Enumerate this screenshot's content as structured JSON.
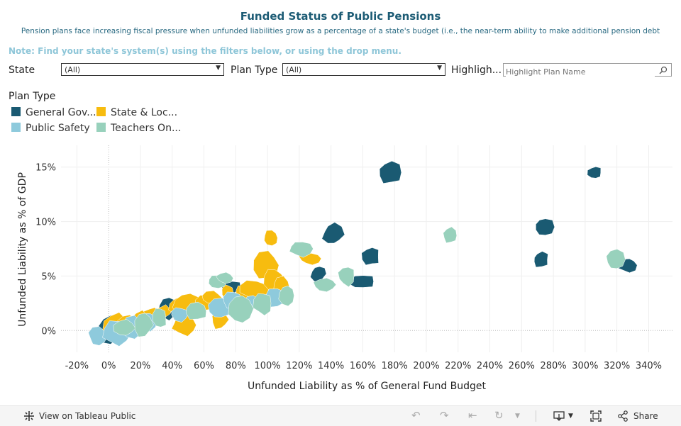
{
  "header": {
    "title": "Funded Status of Public Pensions",
    "subtitle": "Pension plans face increasing fiscal pressure when unfunded liabilities grow as a percentage of a state's budget (i.e., the near-term ability to make additional pension debt"
  },
  "note": "Note: Find your state's system(s) using the filters below, or using the drop menu.",
  "filters": {
    "state_label": "State",
    "state_value": "(All)",
    "plan_type_label": "Plan Type",
    "plan_type_value": "(All)",
    "highlight_label": "Highligh...",
    "highlight_placeholder": "Highlight Plan Name"
  },
  "legend": {
    "title": "Plan Type",
    "items": [
      {
        "label": "General Gov...",
        "color": "#1a5a72"
      },
      {
        "label": "State & Loc...",
        "color": "#f7bc0f"
      },
      {
        "label": "Public Safety",
        "color": "#8ecadc"
      },
      {
        "label": "Teachers On...",
        "color": "#98d1bc"
      }
    ]
  },
  "chart_data": {
    "type": "scatter",
    "marker": "state-shape",
    "xlabel": "Unfunded Liability as % of General Fund Budget",
    "ylabel": "Unfunded Liability as % of GDP",
    "xticks": [
      "-20%",
      "0%",
      "20%",
      "40%",
      "60%",
      "80%",
      "100%",
      "120%",
      "140%",
      "160%",
      "180%",
      "200%",
      "220%",
      "240%",
      "260%",
      "280%",
      "300%",
      "320%",
      "340%"
    ],
    "yticks": [
      "0%",
      "5%",
      "10%",
      "15%"
    ],
    "xlim": [
      -30,
      355
    ],
    "ylim": [
      -2,
      17
    ],
    "grid": true,
    "series": [
      {
        "name": "General Gov...",
        "color": "#1a5a72",
        "points": [
          {
            "x": 0,
            "y": 0
          },
          {
            "x": 37,
            "y": 2
          },
          {
            "x": 44,
            "y": 1.8
          },
          {
            "x": 52,
            "y": 2
          },
          {
            "x": 77,
            "y": 4
          },
          {
            "x": 98,
            "y": 3.2
          },
          {
            "x": 132,
            "y": 5.2
          },
          {
            "x": 141,
            "y": 8.8
          },
          {
            "x": 165,
            "y": 6.8
          },
          {
            "x": 159,
            "y": 4.5
          },
          {
            "x": 177,
            "y": 14.5
          },
          {
            "x": 274,
            "y": 9.5
          },
          {
            "x": 272,
            "y": 6.5
          },
          {
            "x": 306,
            "y": 14.5
          },
          {
            "x": 327,
            "y": 6
          }
        ]
      },
      {
        "name": "State & Loc...",
        "color": "#f7bc0f",
        "points": [
          {
            "x": 5,
            "y": 0.5
          },
          {
            "x": 12,
            "y": 0.6
          },
          {
            "x": 20,
            "y": 1
          },
          {
            "x": 28,
            "y": 1.5
          },
          {
            "x": 35,
            "y": 1.8
          },
          {
            "x": 42,
            "y": 2.2
          },
          {
            "x": 50,
            "y": 2.5
          },
          {
            "x": 48,
            "y": 0.5
          },
          {
            "x": 62,
            "y": 2.5
          },
          {
            "x": 65,
            "y": 3
          },
          {
            "x": 70,
            "y": 1
          },
          {
            "x": 75,
            "y": 3.5
          },
          {
            "x": 85,
            "y": 3.5
          },
          {
            "x": 92,
            "y": 3.8
          },
          {
            "x": 99,
            "y": 6
          },
          {
            "x": 104,
            "y": 4.6
          },
          {
            "x": 109,
            "y": 4
          },
          {
            "x": 102,
            "y": 8.5
          },
          {
            "x": 127,
            "y": 6.6
          }
        ]
      },
      {
        "name": "Public Safety",
        "color": "#8ecadc",
        "points": [
          {
            "x": -7,
            "y": -0.5
          },
          {
            "x": 5,
            "y": -0.2
          },
          {
            "x": 15,
            "y": 0.3
          },
          {
            "x": 25,
            "y": 0.8
          },
          {
            "x": 45,
            "y": 1.5
          },
          {
            "x": 70,
            "y": 2
          },
          {
            "x": 78,
            "y": 2.8
          },
          {
            "x": 90,
            "y": 2.5
          },
          {
            "x": 105,
            "y": 3
          }
        ]
      },
      {
        "name": "Teachers On...",
        "color": "#98d1bc",
        "points": [
          {
            "x": 10,
            "y": 0.2
          },
          {
            "x": 22,
            "y": 0.5
          },
          {
            "x": 32,
            "y": 1.2
          },
          {
            "x": 55,
            "y": 1.8
          },
          {
            "x": 68,
            "y": 4.5
          },
          {
            "x": 73,
            "y": 4.8
          },
          {
            "x": 83,
            "y": 2
          },
          {
            "x": 97,
            "y": 2.5
          },
          {
            "x": 112,
            "y": 3.2
          },
          {
            "x": 121,
            "y": 7.5
          },
          {
            "x": 136,
            "y": 4.2
          },
          {
            "x": 150,
            "y": 5
          },
          {
            "x": 215,
            "y": 8.7
          },
          {
            "x": 319,
            "y": 6.5
          }
        ]
      }
    ]
  },
  "footer": {
    "view_label": "View on Tableau Public",
    "share_label": "Share"
  }
}
